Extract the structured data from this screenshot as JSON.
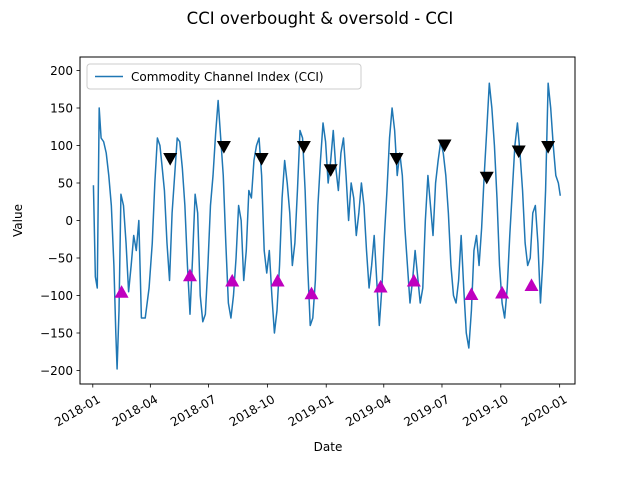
{
  "chart_data": {
    "type": "line",
    "title": "CCI overbought & oversold - CCI",
    "xlabel": "Date",
    "ylabel": "Value",
    "x_range": [
      "2017-12-12",
      "2020-01-25"
    ],
    "ylim": [
      -218,
      218
    ],
    "x_ticks": [
      "2018-01",
      "2018-04",
      "2018-07",
      "2018-10",
      "2019-01",
      "2019-04",
      "2019-07",
      "2019-10",
      "2020-01"
    ],
    "x_tick_dates": [
      "2018-01-01",
      "2018-04-01",
      "2018-07-01",
      "2018-10-01",
      "2019-01-01",
      "2019-04-01",
      "2019-07-01",
      "2019-10-01",
      "2020-01-01"
    ],
    "y_ticks": [
      -200,
      -150,
      -100,
      -50,
      0,
      50,
      100,
      150,
      200
    ],
    "grid": false,
    "legend_position": "top-left",
    "series": [
      {
        "name": "Commodity Channel Index (CCI)",
        "color": "#1f77b4",
        "points": [
          [
            "2018-01-02",
            47
          ],
          [
            "2018-01-05",
            -75
          ],
          [
            "2018-01-08",
            -90
          ],
          [
            "2018-01-11",
            150
          ],
          [
            "2018-01-14",
            110
          ],
          [
            "2018-01-18",
            105
          ],
          [
            "2018-01-22",
            90
          ],
          [
            "2018-01-26",
            60
          ],
          [
            "2018-01-30",
            20
          ],
          [
            "2018-02-03",
            -60
          ],
          [
            "2018-02-06",
            -150
          ],
          [
            "2018-02-08",
            -198
          ],
          [
            "2018-02-11",
            -120
          ],
          [
            "2018-02-14",
            35
          ],
          [
            "2018-02-18",
            20
          ],
          [
            "2018-02-22",
            -30
          ],
          [
            "2018-02-26",
            -95
          ],
          [
            "2018-03-02",
            -60
          ],
          [
            "2018-03-06",
            -20
          ],
          [
            "2018-03-10",
            -40
          ],
          [
            "2018-03-14",
            0
          ],
          [
            "2018-03-18",
            -130
          ],
          [
            "2018-03-24",
            -130
          ],
          [
            "2018-03-30",
            -90
          ],
          [
            "2018-04-04",
            -30
          ],
          [
            "2018-04-08",
            50
          ],
          [
            "2018-04-12",
            110
          ],
          [
            "2018-04-16",
            100
          ],
          [
            "2018-04-19",
            75
          ],
          [
            "2018-04-23",
            40
          ],
          [
            "2018-04-27",
            -30
          ],
          [
            "2018-05-01",
            -80
          ],
          [
            "2018-05-05",
            10
          ],
          [
            "2018-05-09",
            60
          ],
          [
            "2018-05-13",
            110
          ],
          [
            "2018-05-17",
            105
          ],
          [
            "2018-05-21",
            70
          ],
          [
            "2018-05-25",
            20
          ],
          [
            "2018-05-29",
            -60
          ],
          [
            "2018-06-02",
            -125
          ],
          [
            "2018-06-06",
            -50
          ],
          [
            "2018-06-10",
            35
          ],
          [
            "2018-06-14",
            10
          ],
          [
            "2018-06-18",
            -100
          ],
          [
            "2018-06-22",
            -135
          ],
          [
            "2018-06-26",
            -125
          ],
          [
            "2018-06-30",
            -60
          ],
          [
            "2018-07-04",
            20
          ],
          [
            "2018-07-08",
            60
          ],
          [
            "2018-07-12",
            115
          ],
          [
            "2018-07-16",
            160
          ],
          [
            "2018-07-20",
            110
          ],
          [
            "2018-07-24",
            60
          ],
          [
            "2018-07-28",
            -30
          ],
          [
            "2018-08-01",
            -110
          ],
          [
            "2018-08-05",
            -130
          ],
          [
            "2018-08-09",
            -100
          ],
          [
            "2018-08-13",
            -50
          ],
          [
            "2018-08-17",
            20
          ],
          [
            "2018-08-21",
            0
          ],
          [
            "2018-08-25",
            -80
          ],
          [
            "2018-08-29",
            -40
          ],
          [
            "2018-09-02",
            40
          ],
          [
            "2018-09-06",
            30
          ],
          [
            "2018-09-10",
            80
          ],
          [
            "2018-09-14",
            100
          ],
          [
            "2018-09-18",
            110
          ],
          [
            "2018-09-22",
            60
          ],
          [
            "2018-09-26",
            -40
          ],
          [
            "2018-09-30",
            -70
          ],
          [
            "2018-10-04",
            -40
          ],
          [
            "2018-10-08",
            -100
          ],
          [
            "2018-10-12",
            -150
          ],
          [
            "2018-10-16",
            -120
          ],
          [
            "2018-10-20",
            -60
          ],
          [
            "2018-10-24",
            30
          ],
          [
            "2018-10-28",
            80
          ],
          [
            "2018-11-01",
            50
          ],
          [
            "2018-11-05",
            10
          ],
          [
            "2018-11-09",
            -60
          ],
          [
            "2018-11-13",
            -30
          ],
          [
            "2018-11-17",
            40
          ],
          [
            "2018-11-21",
            120
          ],
          [
            "2018-11-25",
            110
          ],
          [
            "2018-11-29",
            40
          ],
          [
            "2018-12-03",
            -60
          ],
          [
            "2018-12-07",
            -140
          ],
          [
            "2018-12-11",
            -130
          ],
          [
            "2018-12-15",
            -80
          ],
          [
            "2018-12-19",
            20
          ],
          [
            "2018-12-23",
            80
          ],
          [
            "2018-12-27",
            130
          ],
          [
            "2018-12-31",
            105
          ],
          [
            "2019-01-04",
            50
          ],
          [
            "2019-01-08",
            80
          ],
          [
            "2019-01-12",
            120
          ],
          [
            "2019-01-16",
            70
          ],
          [
            "2019-01-20",
            40
          ],
          [
            "2019-01-24",
            90
          ],
          [
            "2019-01-28",
            110
          ],
          [
            "2019-02-01",
            60
          ],
          [
            "2019-02-05",
            0
          ],
          [
            "2019-02-09",
            50
          ],
          [
            "2019-02-13",
            30
          ],
          [
            "2019-02-17",
            -20
          ],
          [
            "2019-02-21",
            10
          ],
          [
            "2019-02-25",
            50
          ],
          [
            "2019-03-01",
            20
          ],
          [
            "2019-03-05",
            -40
          ],
          [
            "2019-03-09",
            -90
          ],
          [
            "2019-03-13",
            -60
          ],
          [
            "2019-03-17",
            -20
          ],
          [
            "2019-03-21",
            -80
          ],
          [
            "2019-03-25",
            -140
          ],
          [
            "2019-03-29",
            -90
          ],
          [
            "2019-04-02",
            -20
          ],
          [
            "2019-04-06",
            40
          ],
          [
            "2019-04-10",
            110
          ],
          [
            "2019-04-14",
            150
          ],
          [
            "2019-04-18",
            120
          ],
          [
            "2019-04-22",
            60
          ],
          [
            "2019-04-26",
            90
          ],
          [
            "2019-04-30",
            60
          ],
          [
            "2019-05-04",
            -10
          ],
          [
            "2019-05-08",
            -60
          ],
          [
            "2019-05-12",
            -110
          ],
          [
            "2019-05-16",
            -80
          ],
          [
            "2019-05-20",
            -40
          ],
          [
            "2019-05-24",
            -75
          ],
          [
            "2019-05-28",
            -110
          ],
          [
            "2019-06-01",
            -90
          ],
          [
            "2019-06-05",
            0
          ],
          [
            "2019-06-09",
            60
          ],
          [
            "2019-06-13",
            20
          ],
          [
            "2019-06-17",
            -20
          ],
          [
            "2019-06-21",
            50
          ],
          [
            "2019-06-25",
            80
          ],
          [
            "2019-06-29",
            105
          ],
          [
            "2019-07-03",
            90
          ],
          [
            "2019-07-07",
            60
          ],
          [
            "2019-07-11",
            10
          ],
          [
            "2019-07-15",
            -60
          ],
          [
            "2019-07-19",
            -100
          ],
          [
            "2019-07-23",
            -110
          ],
          [
            "2019-07-27",
            -80
          ],
          [
            "2019-07-31",
            -20
          ],
          [
            "2019-08-04",
            -90
          ],
          [
            "2019-08-08",
            -150
          ],
          [
            "2019-08-12",
            -170
          ],
          [
            "2019-08-16",
            -120
          ],
          [
            "2019-08-20",
            -40
          ],
          [
            "2019-08-24",
            -20
          ],
          [
            "2019-08-28",
            -60
          ],
          [
            "2019-09-01",
            -10
          ],
          [
            "2019-09-05",
            60
          ],
          [
            "2019-09-09",
            120
          ],
          [
            "2019-09-13",
            183
          ],
          [
            "2019-09-17",
            150
          ],
          [
            "2019-09-21",
            100
          ],
          [
            "2019-09-25",
            30
          ],
          [
            "2019-09-29",
            -60
          ],
          [
            "2019-10-03",
            -110
          ],
          [
            "2019-10-07",
            -130
          ],
          [
            "2019-10-11",
            -90
          ],
          [
            "2019-10-15",
            -20
          ],
          [
            "2019-10-19",
            40
          ],
          [
            "2019-10-23",
            100
          ],
          [
            "2019-10-27",
            130
          ],
          [
            "2019-10-31",
            90
          ],
          [
            "2019-11-04",
            40
          ],
          [
            "2019-11-08",
            -30
          ],
          [
            "2019-11-12",
            -60
          ],
          [
            "2019-11-16",
            -50
          ],
          [
            "2019-11-20",
            10
          ],
          [
            "2019-11-24",
            20
          ],
          [
            "2019-11-28",
            -30
          ],
          [
            "2019-12-02",
            -110
          ],
          [
            "2019-12-06",
            -50
          ],
          [
            "2019-12-10",
            40
          ],
          [
            "2019-12-14",
            183
          ],
          [
            "2019-12-18",
            150
          ],
          [
            "2019-12-22",
            100
          ],
          [
            "2019-12-26",
            60
          ],
          [
            "2019-12-30",
            50
          ],
          [
            "2020-01-02",
            33
          ]
        ]
      }
    ],
    "markers": {
      "overbought": {
        "symbol": "triangle-down",
        "color": "#000000",
        "points": [
          [
            "2018-05-02",
            82
          ],
          [
            "2018-07-25",
            98
          ],
          [
            "2018-09-22",
            82
          ],
          [
            "2018-11-27",
            98
          ],
          [
            "2019-01-08",
            67
          ],
          [
            "2019-04-21",
            82
          ],
          [
            "2019-07-05",
            100
          ],
          [
            "2019-09-09",
            57
          ],
          [
            "2019-10-29",
            92
          ],
          [
            "2019-12-14",
            98
          ]
        ]
      },
      "oversold": {
        "symbol": "triangle-up",
        "color": "#bf00bf",
        "points": [
          [
            "2018-02-15",
            -95
          ],
          [
            "2018-06-02",
            -73
          ],
          [
            "2018-08-07",
            -80
          ],
          [
            "2018-10-17",
            -80
          ],
          [
            "2018-12-09",
            -97
          ],
          [
            "2019-03-27",
            -88
          ],
          [
            "2019-05-18",
            -80
          ],
          [
            "2019-08-16",
            -98
          ],
          [
            "2019-10-03",
            -96
          ],
          [
            "2019-11-18",
            -86
          ]
        ]
      }
    }
  }
}
